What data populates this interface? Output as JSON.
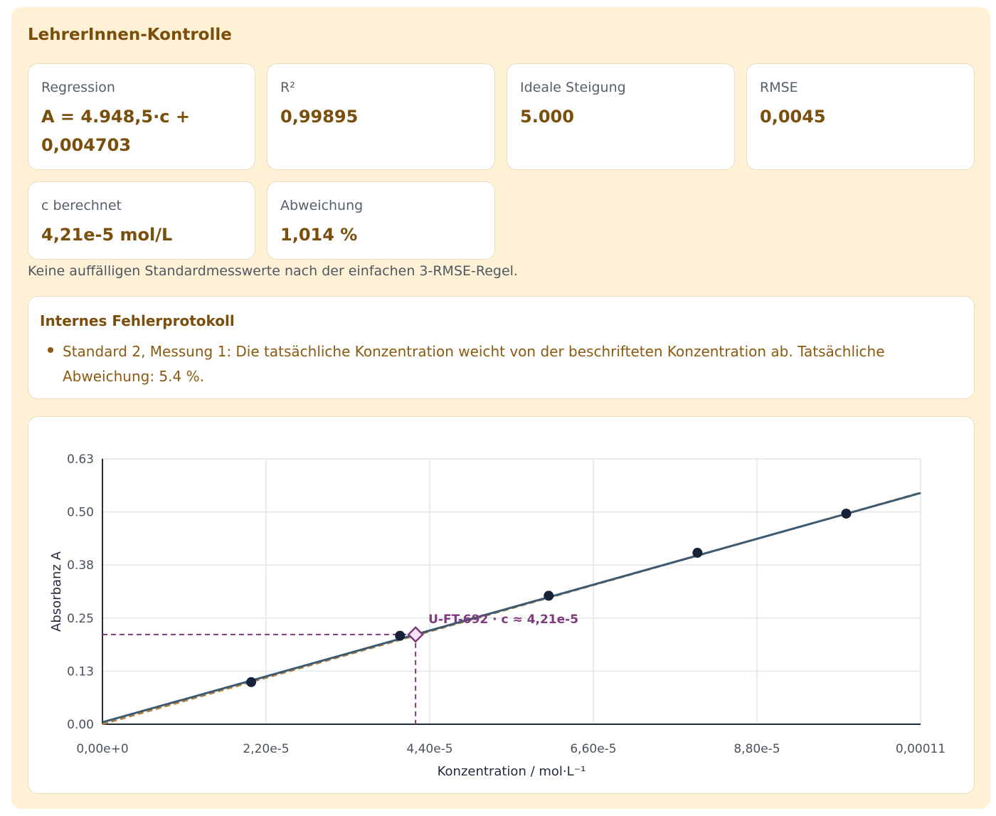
{
  "panel": {
    "title": "LehrerInnen-Kontrolle"
  },
  "stats": [
    {
      "label": "Regression",
      "value": "A = 4.948,5·c + 0,004703"
    },
    {
      "label": "R²",
      "value": "0,99895"
    },
    {
      "label": "Ideale Steigung",
      "value": "5.000"
    },
    {
      "label": "RMSE",
      "value": "0,0045"
    },
    {
      "label": "c berechnet",
      "value": "4,21e-5 mol/L"
    },
    {
      "label": "Abweichung",
      "value": "1,014 %"
    }
  ],
  "note": "Keine auffälligen Standardmesswerte nach der einfachen 3-RMSE-Regel.",
  "error_log": {
    "title": "Internes Fehlerprotokoll",
    "items": [
      "Standard 2, Messung 1: Die tatsächliche Konzentration weicht von der beschrifteten Konzentration ab. Tatsächliche Abweichung: 5.4 %."
    ]
  },
  "colors": {
    "accent": "#7a4e0b",
    "regression_line": "#3d5a73",
    "ideal_line": "#b5813a",
    "points": "#17213a",
    "sample": "#7d3a7d"
  },
  "chart_data": {
    "type": "scatter",
    "xlabel": "Konzentration / mol·L⁻¹",
    "ylabel": "Absorbanz A",
    "xlim": [
      0,
      0.00011
    ],
    "ylim": [
      0,
      0.63
    ],
    "x_ticks": [
      0,
      2.2e-05,
      4.4e-05,
      6.6e-05,
      8.8e-05,
      0.00011
    ],
    "x_tick_labels": [
      "0,00e+0",
      "2,20e-5",
      "4,40e-5",
      "6,60e-5",
      "8,80e-5",
      "0,00011"
    ],
    "y_ticks": [
      0,
      0.126,
      0.252,
      0.378,
      0.504,
      0.63
    ],
    "y_tick_labels": [
      "0.00",
      "0.13",
      "0.25",
      "0.38",
      "0.50",
      "0.63"
    ],
    "grid": true,
    "series": [
      {
        "kind": "points",
        "x": [
          2e-05,
          4e-05,
          6e-05,
          8e-05,
          0.0001
        ],
        "y": [
          0.1,
          0.21,
          0.305,
          0.407,
          0.5
        ]
      },
      {
        "kind": "regression",
        "slope": 4948.5,
        "intercept": 0.004703
      },
      {
        "kind": "ideal",
        "slope": 5000,
        "intercept": 0
      }
    ],
    "sample": {
      "label": "U-FT-692 · c ≈ 4,21e-5",
      "x": 4.21e-05,
      "y": 0.213
    }
  }
}
